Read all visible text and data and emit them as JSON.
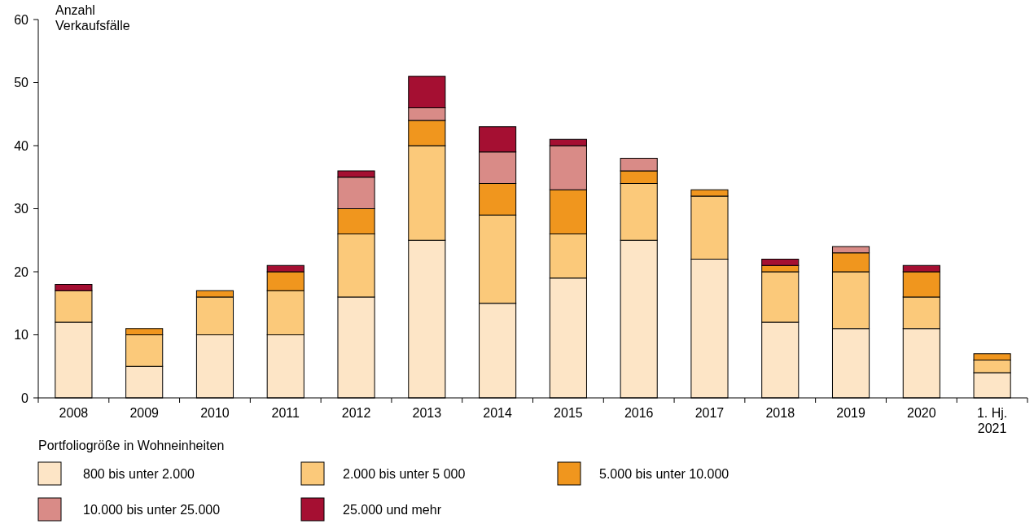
{
  "chart_data": {
    "type": "bar",
    "stacked": true,
    "ylabel": "Anzahl Verkaufsfälle",
    "legend_title": "Portfoliogröße in Wohneinheiten",
    "legend": "bottom",
    "grid": false,
    "categories": [
      "2008",
      "2009",
      "2010",
      "2011",
      "2012",
      "2013",
      "2014",
      "2015",
      "2016",
      "2017",
      "2018",
      "2019",
      "2020",
      "1. Hj. 2021"
    ],
    "ylim": [
      0,
      60
    ],
    "yticks": [
      0,
      10,
      20,
      30,
      40,
      50,
      60
    ],
    "series": [
      {
        "name": "800 bis unter 2.000",
        "color": "#fde5c6",
        "values": [
          12,
          5,
          10,
          10,
          16,
          25,
          15,
          19,
          25,
          22,
          12,
          11,
          11,
          4
        ]
      },
      {
        "name": "2.000 bis unter 5 000",
        "color": "#fbc97a",
        "values": [
          5,
          5,
          6,
          7,
          10,
          15,
          14,
          7,
          9,
          10,
          8,
          9,
          5,
          2
        ]
      },
      {
        "name": "5.000 bis unter 10.000",
        "color": "#f0961e",
        "values": [
          0,
          1,
          1,
          3,
          4,
          4,
          5,
          7,
          2,
          1,
          1,
          3,
          4,
          1
        ]
      },
      {
        "name": "10.000 bis unter 25.000",
        "color": "#d98b87",
        "values": [
          0,
          0,
          0,
          0,
          5,
          2,
          5,
          7,
          2,
          0,
          0,
          1,
          0,
          0
        ]
      },
      {
        "name": "25.000 und mehr",
        "color": "#a50f32",
        "values": [
          1,
          0,
          0,
          1,
          1,
          5,
          4,
          1,
          0,
          0,
          1,
          0,
          1,
          0
        ]
      }
    ]
  }
}
